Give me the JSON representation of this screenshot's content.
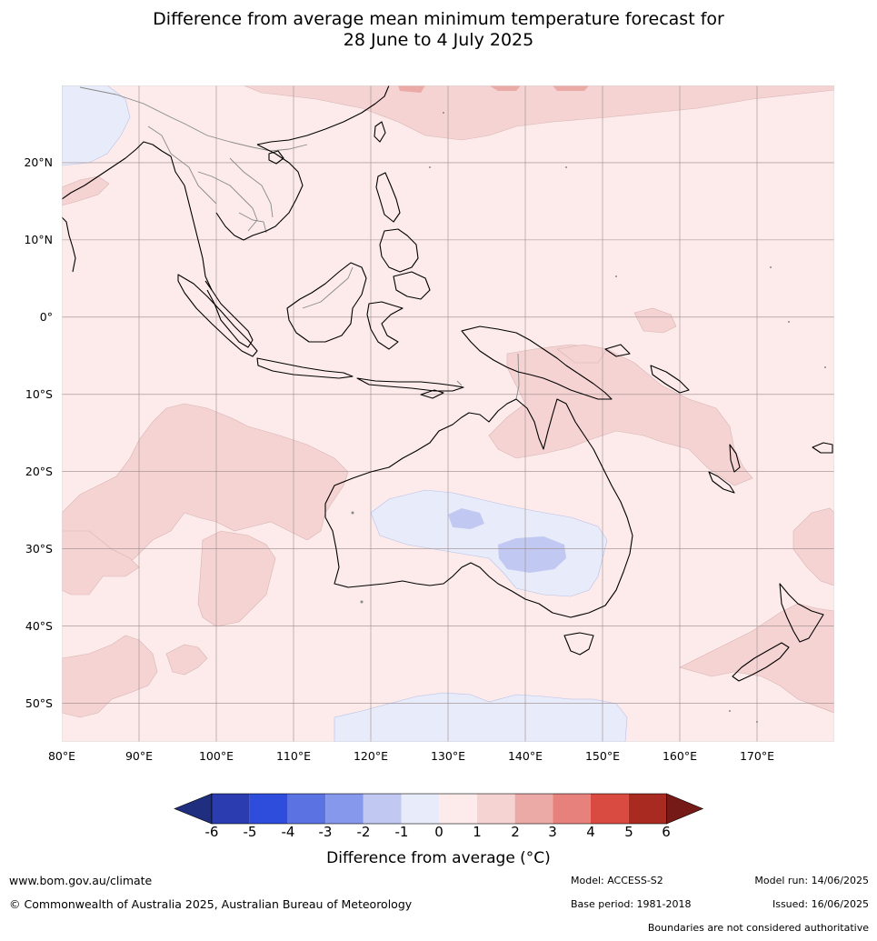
{
  "title_line1": "Difference from average mean minimum temperature forecast for",
  "title_line2": "28 June to 4 July 2025",
  "map": {
    "lat_labels": [
      "20°N",
      "10°N",
      "0°",
      "10°S",
      "20°S",
      "30°S",
      "40°S",
      "50°S"
    ],
    "lon_labels": [
      "80°E",
      "90°E",
      "100°E",
      "110°E",
      "120°E",
      "130°E",
      "140°E",
      "150°E",
      "160°E",
      "170°E"
    ],
    "lon_range": [
      80,
      180
    ],
    "lat_range": [
      -55,
      30
    ],
    "colors": {
      "anom_0_1": "#fcebea",
      "anom_1_2": "#f5d3d3",
      "anom_2_3": "#ebaaa5",
      "anom_m1_0": "#e8ebf9",
      "anom_m2_m1": "#c1c8f2",
      "coast": "#000000",
      "border": "#888888",
      "grid": "#9a8a8a"
    }
  },
  "colorbar": {
    "ticks": [
      "-6",
      "-5",
      "-4",
      "-3",
      "-2",
      "-1",
      "0",
      "1",
      "2",
      "3",
      "4",
      "5",
      "6"
    ],
    "colors": [
      "#1f2e7f",
      "#2a3cb0",
      "#2f4ddd",
      "#5b72e3",
      "#8598ec",
      "#c1c8f2",
      "#e8ebf9",
      "#fcebea",
      "#f5d3d3",
      "#ebaaa5",
      "#e6817b",
      "#d94a40",
      "#a82a20",
      "#751a16"
    ],
    "label": "Difference from average (°C)"
  },
  "footer": {
    "url": "www.bom.gov.au/climate",
    "copyright": "© Commonwealth of Australia 2025, Australian Bureau of Meteorology",
    "model": "Model: ACCESS-S2",
    "base_period": "Base period: 1981-2018",
    "model_run": "Model run: 14/06/2025",
    "issued": "Issued: 16/06/2025",
    "disclaimer": "Boundaries are not considered authoritative"
  }
}
